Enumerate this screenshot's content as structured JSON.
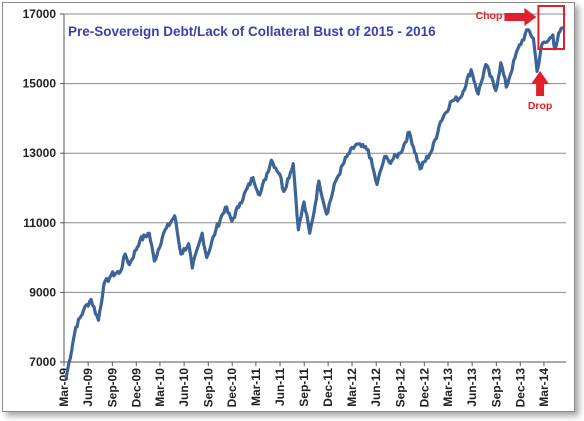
{
  "chart_data": {
    "type": "line",
    "title": "Pre-Sovereign Debt/Lack of Collateral Bust of 2015 - 2016",
    "xlabel": "",
    "ylabel": "",
    "ylim": [
      7000,
      17000
    ],
    "y_ticks": [
      7000,
      9000,
      11000,
      13000,
      15000,
      17000
    ],
    "x_ticks": [
      "Mar-09",
      "Jun-09",
      "Sep-09",
      "Dec-09",
      "Mar-10",
      "Jun-10",
      "Sep-10",
      "Dec-10",
      "Mar-11",
      "Jun-11",
      "Sep-11",
      "Dec-11",
      "Mar-12",
      "Jun-12",
      "Sep-12",
      "Dec-12",
      "Mar-13",
      "Jun-13",
      "Sep-13",
      "Dec-13",
      "Mar-14"
    ],
    "grid": "horizontal",
    "colors": {
      "line": "#3c6497",
      "annotation": "#e0202a",
      "title": "#3b3fb0"
    },
    "series": [
      {
        "name": "",
        "x": [
          "2009-03-09",
          "2009-04-15",
          "2009-05-15",
          "2009-06-12",
          "2009-07-10",
          "2009-07-30",
          "2009-08-28",
          "2009-10-02",
          "2009-10-20",
          "2009-11-05",
          "2009-12-15",
          "2010-01-19",
          "2010-02-08",
          "2010-03-15",
          "2010-04-26",
          "2010-05-20",
          "2010-06-18",
          "2010-07-02",
          "2010-08-09",
          "2010-08-26",
          "2010-09-30",
          "2010-11-05",
          "2010-11-30",
          "2010-12-31",
          "2011-02-18",
          "2011-03-16",
          "2011-04-29",
          "2011-05-31",
          "2011-06-15",
          "2011-07-21",
          "2011-08-10",
          "2011-08-31",
          "2011-09-22",
          "2011-10-03",
          "2011-10-27",
          "2011-11-25",
          "2011-12-30",
          "2012-02-10",
          "2012-03-16",
          "2012-05-01",
          "2012-06-04",
          "2012-07-03",
          "2012-07-20",
          "2012-08-31",
          "2012-10-05",
          "2012-11-15",
          "2012-12-31",
          "2013-01-31",
          "2013-03-15",
          "2013-04-18",
          "2013-05-28",
          "2013-06-24",
          "2013-07-23",
          "2013-08-30",
          "2013-09-18",
          "2013-10-09",
          "2013-11-22",
          "2013-12-31",
          "2014-01-20",
          "2014-02-03",
          "2014-02-20",
          "2014-03-14",
          "2014-04-04",
          "2014-04-11",
          "2014-05-01",
          "2014-05-12"
        ],
        "values": [
          6550,
          8000,
          8500,
          8800,
          8200,
          9200,
          9500,
          9600,
          10100,
          9800,
          10500,
          10700,
          9900,
          10700,
          11200,
          10100,
          10400,
          9700,
          10700,
          10000,
          10800,
          11450,
          11050,
          11570,
          12300,
          11800,
          12800,
          12400,
          11900,
          12700,
          10800,
          11600,
          10700,
          11100,
          12200,
          11250,
          12200,
          12900,
          13250,
          13100,
          12100,
          12900,
          12750,
          13000,
          13600,
          12550,
          13100,
          13900,
          14500,
          14600,
          15400,
          14700,
          15550,
          14800,
          15600,
          14900,
          16000,
          16550,
          16300,
          15350,
          16100,
          16200,
          16400,
          16000,
          16500,
          16600
        ]
      }
    ],
    "annotations": [
      {
        "text": "Chop",
        "at": "2014-03-01",
        "y": 16700
      },
      {
        "text": "Drop",
        "at": "2014-02-03",
        "y": 15350
      }
    ]
  }
}
